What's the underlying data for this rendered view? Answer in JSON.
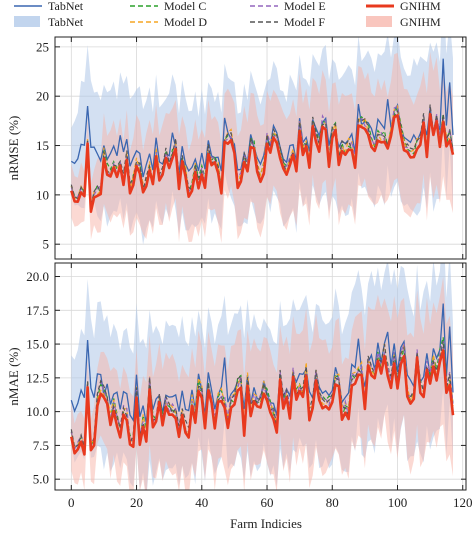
{
  "chart_data": {
    "type": "line",
    "xlabel": "Farm Indicies",
    "x_range": [
      0,
      117
    ],
    "xlim": [
      -5,
      121
    ],
    "xticks": [
      0,
      20,
      40,
      60,
      80,
      100,
      120
    ],
    "grid": true,
    "legend_placement": "top",
    "legend": [
      {
        "label": "TabNet",
        "kind": "line",
        "color": "#3a66b0",
        "dash": "solid"
      },
      {
        "label": "TabNet",
        "kind": "band",
        "color": "#aec7e8"
      },
      {
        "label": "Model C",
        "kind": "line",
        "color": "#2ca02c",
        "dash": "dashed"
      },
      {
        "label": "Model D",
        "kind": "line",
        "color": "#f5a623",
        "dash": "dashed"
      },
      {
        "label": "Model E",
        "kind": "line",
        "color": "#9467bd",
        "dash": "dashed"
      },
      {
        "label": "Model F",
        "kind": "line",
        "color": "#555555",
        "dash": "dashed"
      },
      {
        "label": "GNIHM",
        "kind": "line",
        "color": "#e8391e",
        "dash": "solid"
      },
      {
        "label": "GNIHM",
        "kind": "band",
        "color": "#f7b3a8"
      }
    ],
    "series_colors": {
      "tabnet": "#3a66b0",
      "tabnet_band": "#aec7e8",
      "model_c": "#2ca02c",
      "model_d": "#f5a623",
      "model_e": "#9467bd",
      "model_f": "#555555",
      "gnihm": "#e8391e",
      "gnihm_band": "#f7b3a8"
    },
    "subplots": [
      {
        "ylabel": "nRMSE (%)",
        "ylim": [
          3.5,
          26
        ],
        "yticks": [
          5,
          10,
          15,
          20,
          25
        ],
        "yticklabels": [
          "5",
          "10",
          "15",
          "20",
          "25"
        ],
        "anchors_x": [
          0,
          3,
          6,
          10,
          15,
          20,
          25,
          30,
          35,
          40,
          45,
          50,
          55,
          60,
          65,
          70,
          75,
          80,
          85,
          90,
          95,
          100,
          105,
          110,
          114,
          117
        ],
        "gnihm_anchors": [
          9.6,
          9.4,
          9.0,
          13.3,
          11.4,
          12.0,
          12.5,
          12.7,
          12.2,
          12.4,
          12.6,
          13.3,
          13.0,
          13.2,
          13.5,
          14.0,
          14.6,
          14.3,
          14.8,
          15.0,
          15.6,
          15.5,
          15.8,
          16.0,
          16.4,
          15.5
        ],
        "tabnet_anchors": [
          12.8,
          14.5,
          15.2,
          14.0,
          14.3,
          14.0,
          14.1,
          13.8,
          13.6,
          13.8,
          14.0,
          14.6,
          14.4,
          14.4,
          14.7,
          15.2,
          15.8,
          15.4,
          15.9,
          16.3,
          17.2,
          16.9,
          16.8,
          17.0,
          17.6,
          16.4
        ],
        "gnihm_band_halfwidth": [
          2.6,
          2.7,
          2.8,
          4.0,
          4.4,
          4.6,
          4.7,
          4.8,
          4.8,
          4.9,
          5.0,
          5.0,
          5.1,
          5.1,
          5.1,
          5.2,
          5.3,
          5.3,
          5.4,
          5.5,
          5.6,
          5.6,
          5.7,
          5.7,
          5.8,
          5.8
        ],
        "tabnet_band_halfwidth": [
          3.4,
          5.8,
          6.0,
          6.0,
          6.0,
          6.1,
          6.1,
          6.1,
          6.0,
          6.0,
          6.0,
          6.2,
          6.2,
          6.2,
          6.3,
          6.4,
          6.5,
          6.5,
          6.6,
          6.7,
          6.9,
          6.9,
          7.0,
          7.0,
          7.2,
          7.0
        ],
        "noise_amplitude": 2.6,
        "spikes": [
          [
            5,
            19.0,
            3.8
          ],
          [
            31,
            16.3,
            3.5
          ],
          [
            47,
            17.8,
            4.3
          ],
          [
            88,
            19.2,
            4.4
          ],
          [
            97,
            19.7,
            5.0
          ],
          [
            114,
            23.8,
            6.4
          ],
          [
            116,
            21.4,
            5.9
          ]
        ]
      },
      {
        "ylabel": "nMAE (%)",
        "ylim": [
          4.2,
          21
        ],
        "yticks": [
          5.0,
          7.5,
          10.0,
          12.5,
          15.0,
          17.5,
          20.0
        ],
        "yticklabels": [
          "5.0",
          "7.5",
          "10.0",
          "12.5",
          "15.0",
          "17.5",
          "20.0"
        ],
        "anchors_x": [
          0,
          3,
          6,
          10,
          15,
          20,
          25,
          30,
          35,
          40,
          45,
          50,
          55,
          60,
          65,
          70,
          75,
          80,
          85,
          90,
          95,
          100,
          105,
          110,
          114,
          117
        ],
        "gnihm_anchors": [
          7.6,
          7.4,
          7.2,
          10.2,
          9.0,
          9.4,
          9.7,
          9.8,
          9.5,
          9.6,
          9.8,
          10.3,
          10.1,
          10.2,
          10.5,
          10.9,
          11.3,
          11.0,
          11.4,
          11.7,
          12.3,
          12.1,
          12.3,
          12.5,
          12.8,
          11.3
        ],
        "tabnet_anchors": [
          10.4,
          11.3,
          11.6,
          11.1,
          11.2,
          11.0,
          11.1,
          10.9,
          10.8,
          10.9,
          11.0,
          11.5,
          11.3,
          11.3,
          11.6,
          12.0,
          12.4,
          12.1,
          12.5,
          12.8,
          13.6,
          13.4,
          13.3,
          13.4,
          13.9,
          12.8
        ],
        "gnihm_band_halfwidth": [
          2.3,
          2.4,
          2.4,
          3.4,
          3.7,
          3.8,
          3.9,
          4.0,
          4.0,
          4.0,
          4.1,
          4.2,
          4.2,
          4.2,
          4.3,
          4.4,
          4.5,
          4.5,
          4.5,
          4.6,
          4.7,
          4.7,
          4.8,
          4.8,
          4.9,
          4.9
        ],
        "tabnet_band_halfwidth": [
          3.0,
          4.6,
          4.8,
          4.8,
          4.8,
          4.9,
          4.9,
          4.9,
          4.8,
          4.8,
          4.9,
          5.0,
          5.0,
          5.0,
          5.1,
          5.2,
          5.3,
          5.3,
          5.4,
          5.5,
          5.6,
          5.6,
          5.7,
          5.7,
          5.8,
          5.7
        ],
        "noise_amplitude": 2.0,
        "spikes": [
          [
            5,
            15.3,
            3.5
          ],
          [
            47,
            14.0,
            3.7
          ],
          [
            88,
            15.4,
            4.0
          ],
          [
            97,
            15.9,
            4.5
          ],
          [
            114,
            18.0,
            5.4
          ],
          [
            116,
            16.3,
            5.0
          ]
        ]
      }
    ]
  }
}
